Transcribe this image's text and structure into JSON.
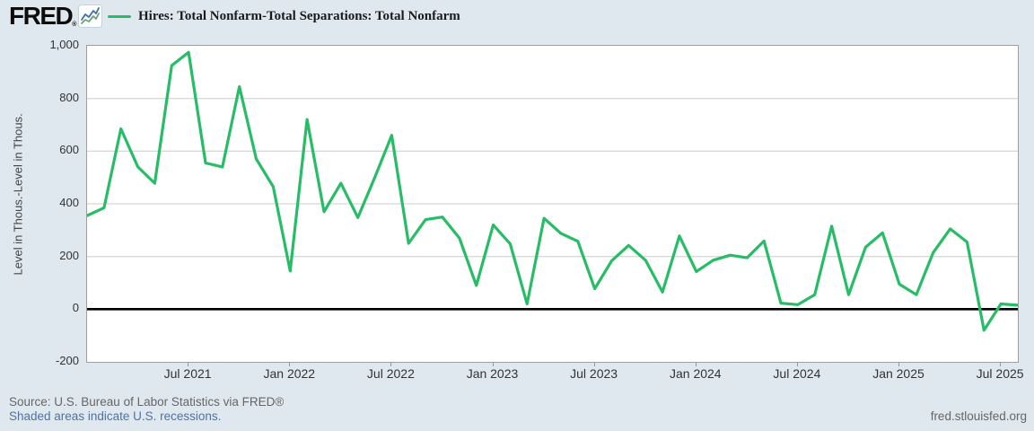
{
  "header": {
    "logo_text": "FRED",
    "registered_mark": "®",
    "legend_label": "Hires: Total Nonfarm-Total Separations: Total Nonfarm"
  },
  "footer": {
    "source_text": "Source: U.S. Bureau of Labor Statistics via FRED®",
    "recessions_note": "Shaded areas indicate U.S. recessions.",
    "site_text": "fred.stlouisfed.org"
  },
  "colors": {
    "page_background": "#e0e8ef",
    "plot_background": "#ffffff",
    "line": "#27bd66",
    "grid": "#cccccc",
    "zero_line": "#000000",
    "plot_border": "#9e9e9e",
    "axis_text": "#333333",
    "muted_text": "#666666",
    "link_blue": "#4d74a3",
    "logo_icon_blue": "#3e6fa7",
    "logo_icon_green": "#68a474"
  },
  "chart_data": {
    "type": "line",
    "title": "Hires: Total Nonfarm-Total Separations: Total Nonfarm",
    "ylabel": "Level in Thous.-Level in Thous.",
    "xlabel": "",
    "ylim": [
      -200,
      1000
    ],
    "grid": true,
    "legend_position": "top-left",
    "x": [
      "2021-01",
      "2021-02",
      "2021-03",
      "2021-04",
      "2021-05",
      "2021-06",
      "2021-07",
      "2021-08",
      "2021-09",
      "2021-10",
      "2021-11",
      "2021-12",
      "2022-01",
      "2022-02",
      "2022-03",
      "2022-04",
      "2022-05",
      "2022-06",
      "2022-07",
      "2022-08",
      "2022-09",
      "2022-10",
      "2022-11",
      "2022-12",
      "2023-01",
      "2023-02",
      "2023-03",
      "2023-04",
      "2023-05",
      "2023-06",
      "2023-07",
      "2023-08",
      "2023-09",
      "2023-10",
      "2023-11",
      "2023-12",
      "2024-01",
      "2024-02",
      "2024-03",
      "2024-04",
      "2024-05",
      "2024-06",
      "2024-07",
      "2024-08",
      "2024-09",
      "2024-10",
      "2024-11",
      "2024-12",
      "2025-01",
      "2025-02",
      "2025-03",
      "2025-04",
      "2025-05",
      "2025-06",
      "2025-07",
      "2025-08"
    ],
    "values": [
      355,
      385,
      685,
      540,
      478,
      925,
      975,
      555,
      540,
      845,
      570,
      465,
      145,
      720,
      370,
      478,
      348,
      500,
      660,
      250,
      340,
      350,
      270,
      90,
      320,
      248,
      20,
      345,
      288,
      258,
      78,
      184,
      242,
      186,
      65,
      278,
      143,
      186,
      205,
      195,
      259,
      23,
      17,
      55,
      315,
      55,
      235,
      290,
      95,
      55,
      215,
      305,
      255,
      -80,
      20,
      15
    ],
    "y_ticks": [
      {
        "label": "1,000",
        "value": 1000
      },
      {
        "label": "800",
        "value": 800
      },
      {
        "label": "600",
        "value": 600
      },
      {
        "label": "400",
        "value": 400
      },
      {
        "label": "200",
        "value": 200
      },
      {
        "label": "0",
        "value": 0
      },
      {
        "label": "-200",
        "value": -200
      }
    ],
    "x_ticks": [
      {
        "label": "Jul 2021",
        "month_index": 6
      },
      {
        "label": "Jan 2022",
        "month_index": 12
      },
      {
        "label": "Jul 2022",
        "month_index": 18
      },
      {
        "label": "Jan 2023",
        "month_index": 24
      },
      {
        "label": "Jul 2023",
        "month_index": 30
      },
      {
        "label": "Jan 2024",
        "month_index": 36
      },
      {
        "label": "Jul 2024",
        "month_index": 42
      },
      {
        "label": "Jan 2025",
        "month_index": 48
      },
      {
        "label": "Jul 2025",
        "month_index": 54
      }
    ]
  }
}
